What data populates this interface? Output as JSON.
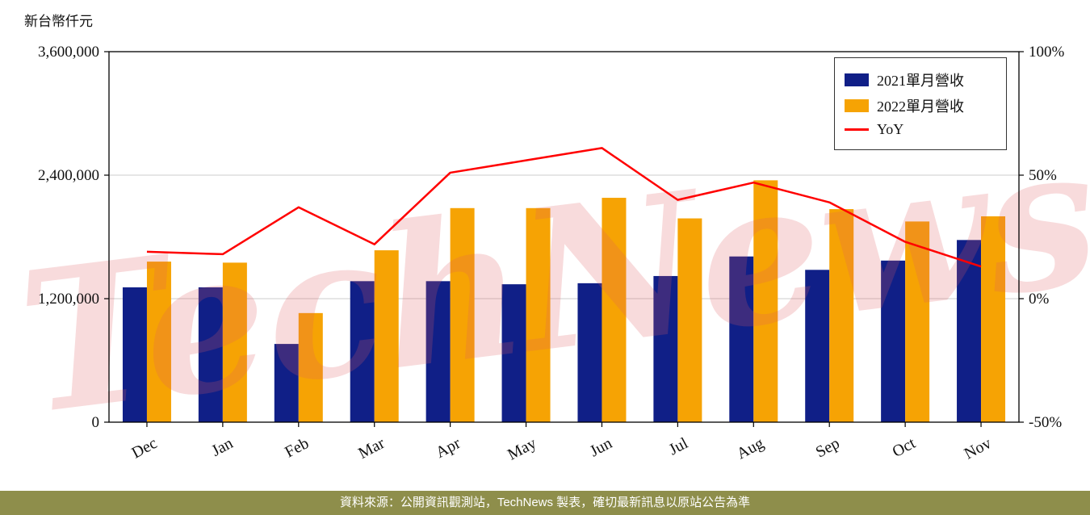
{
  "unit_label": "新台幣仟元",
  "watermark": "TechNews",
  "footer": {
    "text": "資料來源：公開資訊觀測站，TechNews 製表，確切最新訊息以原站公告為準"
  },
  "colors": {
    "bar_2021": "#101f87",
    "bar_2022": "#f6a304",
    "yoy_line": "#ff0000",
    "grid": "#cccccc",
    "axis": "#000000",
    "watermark": "#dd5a60",
    "footer_bg": "#8e8e4b"
  },
  "legend": [
    {
      "label": "2021單月營收",
      "type": "box",
      "color_key": "bar_2021"
    },
    {
      "label": "2022單月營收",
      "type": "box",
      "color_key": "bar_2022"
    },
    {
      "label": "YoY",
      "type": "line",
      "color_key": "yoy_line"
    }
  ],
  "chart_data": {
    "type": "bar+line",
    "title": "",
    "categories": [
      "Dec",
      "Jan",
      "Feb",
      "Mar",
      "Apr",
      "May",
      "Jun",
      "Jul",
      "Aug",
      "Sep",
      "Oct",
      "Nov"
    ],
    "series": [
      {
        "name": "2021單月營收",
        "type": "bar",
        "axis": "left",
        "values": [
          1310000,
          1310000,
          760000,
          1370000,
          1370000,
          1340000,
          1350000,
          1420000,
          1610000,
          1480000,
          1570000,
          1770000
        ]
      },
      {
        "name": "2022單月營收",
        "type": "bar",
        "axis": "left",
        "values": [
          1560000,
          1550000,
          1060000,
          1670000,
          2080000,
          2080000,
          2180000,
          1980000,
          2350000,
          2070000,
          1950000,
          2000000
        ]
      },
      {
        "name": "YoY",
        "type": "line",
        "axis": "right",
        "unit": "%",
        "values": [
          19,
          18,
          37,
          22,
          51,
          56,
          61,
          40,
          47,
          39,
          23,
          13
        ]
      }
    ],
    "y_left": {
      "label": "新台幣仟元",
      "min": 0,
      "max": 3600000,
      "ticks": [
        0,
        1200000,
        2400000,
        3600000
      ],
      "tick_labels": [
        "0",
        "1,200,000",
        "2,400,000",
        "3,600,000"
      ]
    },
    "y_right": {
      "label": "",
      "min": -50,
      "max": 100,
      "ticks": [
        -50,
        0,
        50,
        100
      ],
      "tick_labels": [
        "-50%",
        "0%",
        "50%",
        "100%"
      ]
    },
    "grid": "horizontal",
    "legend_position": "upper right"
  }
}
